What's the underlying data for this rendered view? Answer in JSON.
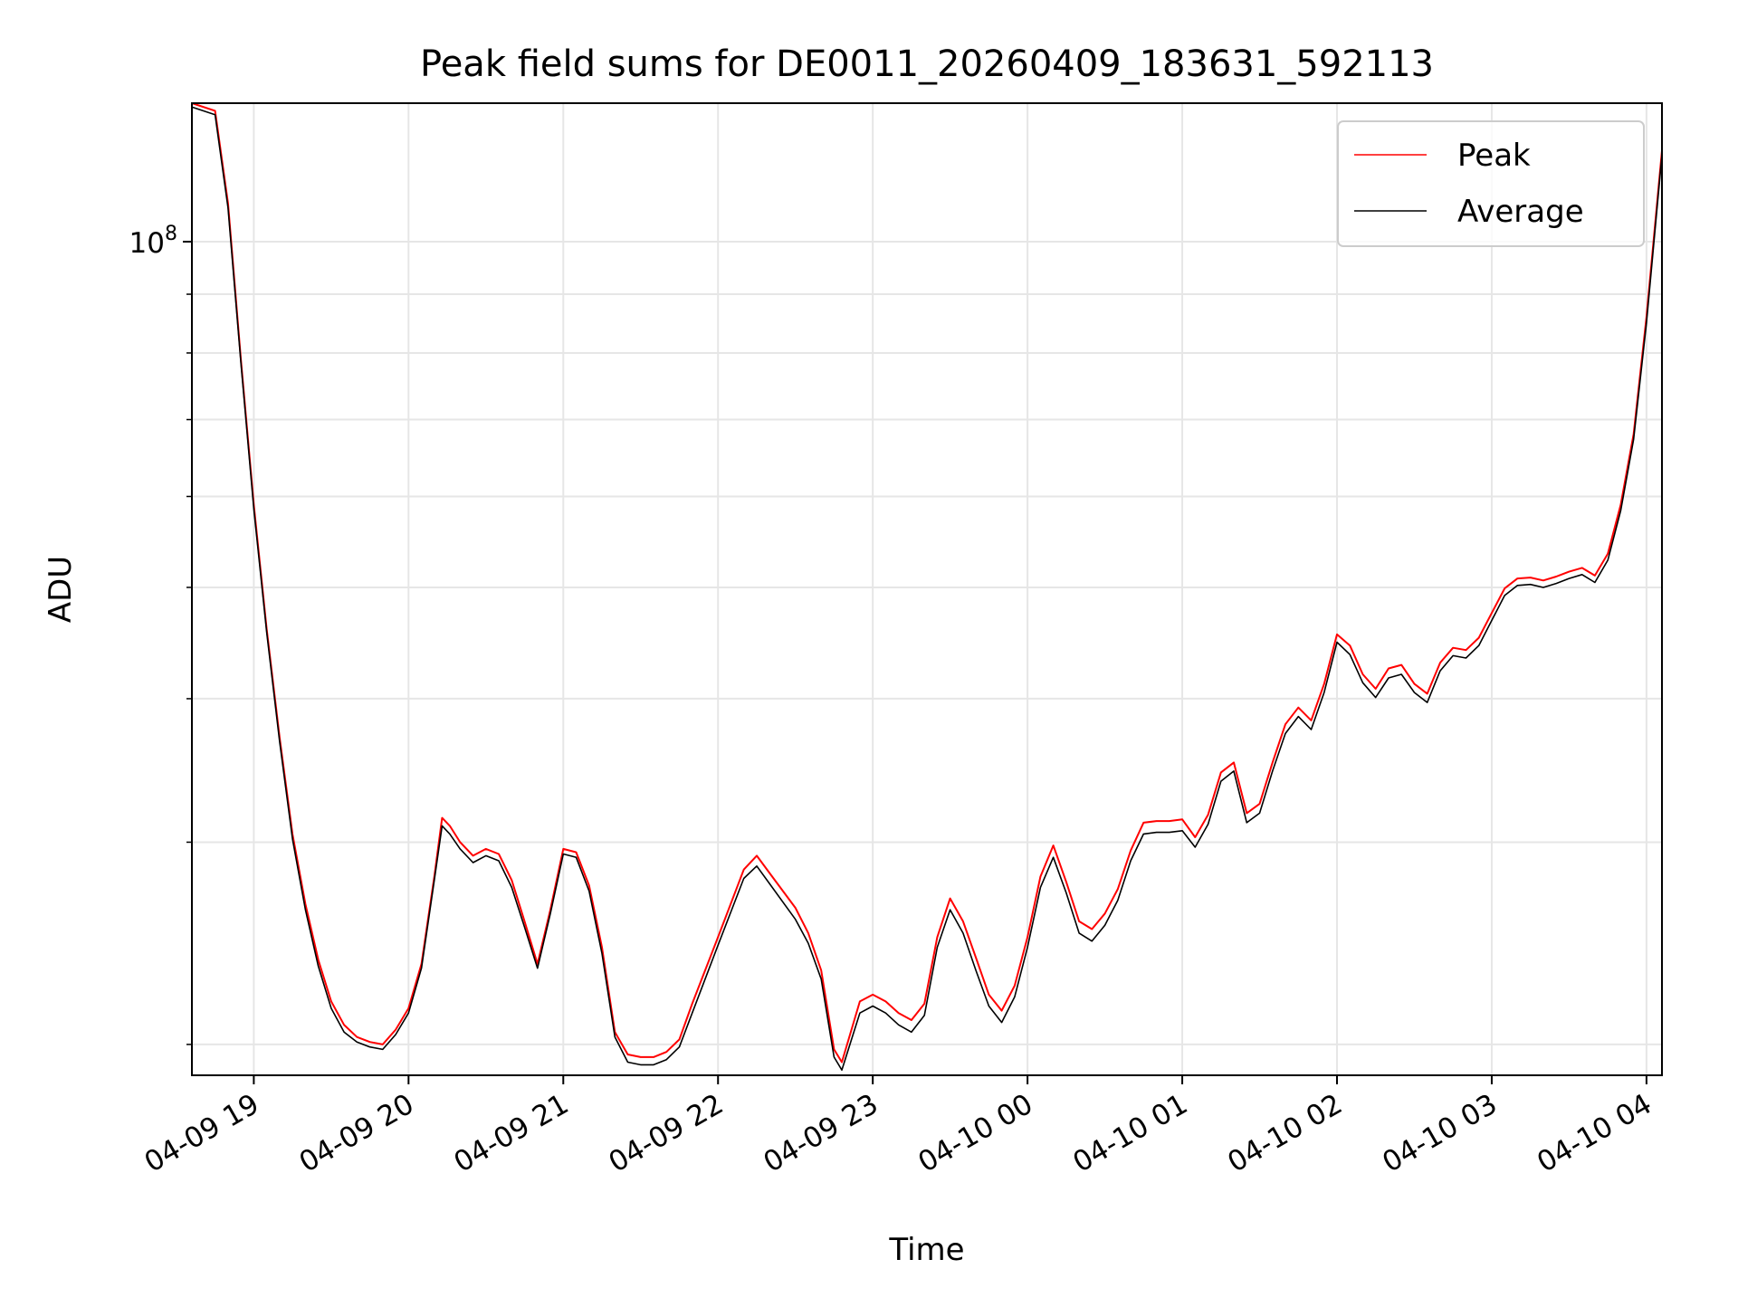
{
  "chart_data": {
    "type": "line",
    "title": "Peak field sums for DE0011_20260409_183631_592113",
    "xlabel": "Time",
    "ylabel": "ADU",
    "x_scale": "time",
    "y_scale": "log",
    "x_range": [
      "2026-04-09 18:36",
      "2026-04-10 04:06"
    ],
    "y_range": [
      18800000,
      132000000
    ],
    "grid": true,
    "legend": {
      "placement": "top-right"
    },
    "x_ticks": [
      {
        "t": "2026-04-09 19:00",
        "label": "04-09 19"
      },
      {
        "t": "2026-04-09 20:00",
        "label": "04-09 20"
      },
      {
        "t": "2026-04-09 21:00",
        "label": "04-09 21"
      },
      {
        "t": "2026-04-09 22:00",
        "label": "04-09 22"
      },
      {
        "t": "2026-04-09 23:00",
        "label": "04-09 23"
      },
      {
        "t": "2026-04-10 00:00",
        "label": "04-10 00"
      },
      {
        "t": "2026-04-10 01:00",
        "label": "04-10 01"
      },
      {
        "t": "2026-04-10 02:00",
        "label": "04-10 02"
      },
      {
        "t": "2026-04-10 03:00",
        "label": "04-10 03"
      },
      {
        "t": "2026-04-10 04:00",
        "label": "04-10 04"
      }
    ],
    "y_major_ticks": [
      {
        "value": 100000000,
        "base": "10",
        "exp": "8"
      }
    ],
    "y_minor_ticks": [
      20000000,
      30000000,
      40000000,
      50000000,
      60000000,
      70000000,
      80000000,
      90000000
    ],
    "series": [
      {
        "name": "Peak",
        "color": "#ff0000",
        "points": [
          [
            "2026-04-09 18:36",
            132000000
          ],
          [
            "2026-04-09 18:45",
            130000000
          ],
          [
            "2026-04-09 18:50",
            108000000
          ],
          [
            "2026-04-09 18:55",
            79000000
          ],
          [
            "2026-04-09 19:00",
            59000000
          ],
          [
            "2026-04-09 19:05",
            46000000
          ],
          [
            "2026-04-09 19:10",
            37000000
          ],
          [
            "2026-04-09 19:15",
            30500000
          ],
          [
            "2026-04-09 19:20",
            26500000
          ],
          [
            "2026-04-09 19:25",
            23700000
          ],
          [
            "2026-04-09 19:30",
            21800000
          ],
          [
            "2026-04-09 19:35",
            20800000
          ],
          [
            "2026-04-09 19:40",
            20300000
          ],
          [
            "2026-04-09 19:45",
            20100000
          ],
          [
            "2026-04-09 19:50",
            20000000
          ],
          [
            "2026-04-09 19:55",
            20600000
          ],
          [
            "2026-04-09 20:00",
            21500000
          ],
          [
            "2026-04-09 20:05",
            23500000
          ],
          [
            "2026-04-09 20:10",
            28000000
          ],
          [
            "2026-04-09 20:13",
            31500000
          ],
          [
            "2026-04-09 20:16",
            31000000
          ],
          [
            "2026-04-09 20:20",
            30000000
          ],
          [
            "2026-04-09 20:25",
            29200000
          ],
          [
            "2026-04-09 20:30",
            29600000
          ],
          [
            "2026-04-09 20:35",
            29300000
          ],
          [
            "2026-04-09 20:40",
            27800000
          ],
          [
            "2026-04-09 20:45",
            25600000
          ],
          [
            "2026-04-09 20:50",
            23500000
          ],
          [
            "2026-04-09 20:55",
            26200000
          ],
          [
            "2026-04-09 21:00",
            29600000
          ],
          [
            "2026-04-09 21:05",
            29400000
          ],
          [
            "2026-04-09 21:10",
            27500000
          ],
          [
            "2026-04-09 21:15",
            24300000
          ],
          [
            "2026-04-09 21:20",
            20500000
          ],
          [
            "2026-04-09 21:25",
            19600000
          ],
          [
            "2026-04-09 21:30",
            19500000
          ],
          [
            "2026-04-09 21:35",
            19500000
          ],
          [
            "2026-04-09 21:40",
            19700000
          ],
          [
            "2026-04-09 21:45",
            20200000
          ],
          [
            "2026-04-09 21:50",
            21700000
          ],
          [
            "2026-04-09 22:00",
            24800000
          ],
          [
            "2026-04-09 22:10",
            28400000
          ],
          [
            "2026-04-09 22:15",
            29200000
          ],
          [
            "2026-04-09 22:20",
            28200000
          ],
          [
            "2026-04-09 22:30",
            26300000
          ],
          [
            "2026-04-09 22:35",
            25000000
          ],
          [
            "2026-04-09 22:40",
            23200000
          ],
          [
            "2026-04-09 22:45",
            19800000
          ],
          [
            "2026-04-09 22:48",
            19300000
          ],
          [
            "2026-04-09 22:55",
            21800000
          ],
          [
            "2026-04-09 23:00",
            22100000
          ],
          [
            "2026-04-09 23:05",
            21800000
          ],
          [
            "2026-04-09 23:10",
            21300000
          ],
          [
            "2026-04-09 23:15",
            21000000
          ],
          [
            "2026-04-09 23:20",
            21700000
          ],
          [
            "2026-04-09 23:25",
            24800000
          ],
          [
            "2026-04-09 23:30",
            26800000
          ],
          [
            "2026-04-09 23:35",
            25600000
          ],
          [
            "2026-04-09 23:40",
            23800000
          ],
          [
            "2026-04-09 23:45",
            22100000
          ],
          [
            "2026-04-09 23:50",
            21400000
          ],
          [
            "2026-04-09 23:55",
            22500000
          ],
          [
            "2026-04-10 00:00",
            24800000
          ],
          [
            "2026-04-10 00:05",
            28000000
          ],
          [
            "2026-04-10 00:10",
            29800000
          ],
          [
            "2026-04-10 00:15",
            27700000
          ],
          [
            "2026-04-10 00:20",
            25600000
          ],
          [
            "2026-04-10 00:25",
            25200000
          ],
          [
            "2026-04-10 00:30",
            26000000
          ],
          [
            "2026-04-10 00:35",
            27300000
          ],
          [
            "2026-04-10 00:40",
            29500000
          ],
          [
            "2026-04-10 00:45",
            31200000
          ],
          [
            "2026-04-10 00:50",
            31300000
          ],
          [
            "2026-04-10 00:55",
            31300000
          ],
          [
            "2026-04-10 01:00",
            31400000
          ],
          [
            "2026-04-10 01:05",
            30300000
          ],
          [
            "2026-04-10 01:10",
            31700000
          ],
          [
            "2026-04-10 01:15",
            34500000
          ],
          [
            "2026-04-10 01:20",
            35200000
          ],
          [
            "2026-04-10 01:25",
            31800000
          ],
          [
            "2026-04-10 01:30",
            32400000
          ],
          [
            "2026-04-10 01:35",
            35200000
          ],
          [
            "2026-04-10 01:40",
            38000000
          ],
          [
            "2026-04-10 01:45",
            39300000
          ],
          [
            "2026-04-10 01:50",
            38300000
          ],
          [
            "2026-04-10 01:55",
            41200000
          ],
          [
            "2026-04-10 02:00",
            45500000
          ],
          [
            "2026-04-10 02:05",
            44500000
          ],
          [
            "2026-04-10 02:10",
            42000000
          ],
          [
            "2026-04-10 02:15",
            40800000
          ],
          [
            "2026-04-10 02:20",
            42500000
          ],
          [
            "2026-04-10 02:25",
            42800000
          ],
          [
            "2026-04-10 02:30",
            41200000
          ],
          [
            "2026-04-10 02:35",
            40400000
          ],
          [
            "2026-04-10 02:40",
            43000000
          ],
          [
            "2026-04-10 02:45",
            44300000
          ],
          [
            "2026-04-10 02:50",
            44100000
          ],
          [
            "2026-04-10 02:55",
            45200000
          ],
          [
            "2026-04-10 03:00",
            47500000
          ],
          [
            "2026-04-10 03:05",
            49900000
          ],
          [
            "2026-04-10 03:10",
            50900000
          ],
          [
            "2026-04-10 03:15",
            51000000
          ],
          [
            "2026-04-10 03:20",
            50700000
          ],
          [
            "2026-04-10 03:25",
            51100000
          ],
          [
            "2026-04-10 03:30",
            51600000
          ],
          [
            "2026-04-10 03:35",
            52000000
          ],
          [
            "2026-04-10 03:40",
            51200000
          ],
          [
            "2026-04-10 03:45",
            53500000
          ],
          [
            "2026-04-10 03:50",
            59000000
          ],
          [
            "2026-04-10 03:55",
            68000000
          ],
          [
            "2026-04-10 04:00",
            86000000
          ],
          [
            "2026-04-10 04:06",
            120000000
          ]
        ]
      },
      {
        "name": "Average",
        "color": "#000000",
        "points": [
          [
            "2026-04-09 18:36",
            131000000
          ],
          [
            "2026-04-09 18:45",
            129000000
          ],
          [
            "2026-04-09 18:50",
            107000000
          ],
          [
            "2026-04-09 18:55",
            78500000
          ],
          [
            "2026-04-09 19:00",
            58500000
          ],
          [
            "2026-04-09 19:05",
            45700000
          ],
          [
            "2026-04-09 19:10",
            36700000
          ],
          [
            "2026-04-09 19:15",
            30200000
          ],
          [
            "2026-04-09 19:20",
            26200000
          ],
          [
            "2026-04-09 19:25",
            23400000
          ],
          [
            "2026-04-09 19:30",
            21500000
          ],
          [
            "2026-04-09 19:35",
            20500000
          ],
          [
            "2026-04-09 19:40",
            20100000
          ],
          [
            "2026-04-09 19:45",
            19900000
          ],
          [
            "2026-04-09 19:50",
            19800000
          ],
          [
            "2026-04-09 19:55",
            20400000
          ],
          [
            "2026-04-09 20:00",
            21300000
          ],
          [
            "2026-04-09 20:05",
            23300000
          ],
          [
            "2026-04-09 20:10",
            27800000
          ],
          [
            "2026-04-09 20:13",
            31000000
          ],
          [
            "2026-04-09 20:16",
            30500000
          ],
          [
            "2026-04-09 20:20",
            29600000
          ],
          [
            "2026-04-09 20:25",
            28800000
          ],
          [
            "2026-04-09 20:30",
            29200000
          ],
          [
            "2026-04-09 20:35",
            28900000
          ],
          [
            "2026-04-09 20:40",
            27400000
          ],
          [
            "2026-04-09 20:45",
            25300000
          ],
          [
            "2026-04-09 20:50",
            23300000
          ],
          [
            "2026-04-09 20:55",
            26000000
          ],
          [
            "2026-04-09 21:00",
            29300000
          ],
          [
            "2026-04-09 21:05",
            29100000
          ],
          [
            "2026-04-09 21:10",
            27200000
          ],
          [
            "2026-04-09 21:15",
            24000000
          ],
          [
            "2026-04-09 21:20",
            20300000
          ],
          [
            "2026-04-09 21:25",
            19300000
          ],
          [
            "2026-04-09 21:30",
            19200000
          ],
          [
            "2026-04-09 21:35",
            19200000
          ],
          [
            "2026-04-09 21:40",
            19400000
          ],
          [
            "2026-04-09 21:45",
            19900000
          ],
          [
            "2026-04-09 21:50",
            21300000
          ],
          [
            "2026-04-09 22:00",
            24400000
          ],
          [
            "2026-04-09 22:10",
            27900000
          ],
          [
            "2026-04-09 22:15",
            28600000
          ],
          [
            "2026-04-09 22:20",
            27600000
          ],
          [
            "2026-04-09 22:30",
            25700000
          ],
          [
            "2026-04-09 22:35",
            24500000
          ],
          [
            "2026-04-09 22:40",
            22800000
          ],
          [
            "2026-04-09 22:45",
            19500000
          ],
          [
            "2026-04-09 22:48",
            19000000
          ],
          [
            "2026-04-09 22:55",
            21300000
          ],
          [
            "2026-04-09 23:00",
            21600000
          ],
          [
            "2026-04-09 23:05",
            21300000
          ],
          [
            "2026-04-09 23:10",
            20800000
          ],
          [
            "2026-04-09 23:15",
            20500000
          ],
          [
            "2026-04-09 23:20",
            21200000
          ],
          [
            "2026-04-09 23:25",
            24300000
          ],
          [
            "2026-04-09 23:30",
            26200000
          ],
          [
            "2026-04-09 23:35",
            25000000
          ],
          [
            "2026-04-09 23:40",
            23200000
          ],
          [
            "2026-04-09 23:45",
            21600000
          ],
          [
            "2026-04-09 23:50",
            20900000
          ],
          [
            "2026-04-09 23:55",
            22000000
          ],
          [
            "2026-04-10 00:00",
            24300000
          ],
          [
            "2026-04-10 00:05",
            27400000
          ],
          [
            "2026-04-10 00:10",
            29100000
          ],
          [
            "2026-04-10 00:15",
            27100000
          ],
          [
            "2026-04-10 00:20",
            25000000
          ],
          [
            "2026-04-10 00:25",
            24600000
          ],
          [
            "2026-04-10 00:30",
            25400000
          ],
          [
            "2026-04-10 00:35",
            26700000
          ],
          [
            "2026-04-10 00:40",
            28900000
          ],
          [
            "2026-04-10 00:45",
            30500000
          ],
          [
            "2026-04-10 00:50",
            30600000
          ],
          [
            "2026-04-10 00:55",
            30600000
          ],
          [
            "2026-04-10 01:00",
            30700000
          ],
          [
            "2026-04-10 01:05",
            29700000
          ],
          [
            "2026-04-10 01:10",
            31100000
          ],
          [
            "2026-04-10 01:15",
            33900000
          ],
          [
            "2026-04-10 01:20",
            34600000
          ],
          [
            "2026-04-10 01:25",
            31200000
          ],
          [
            "2026-04-10 01:30",
            31800000
          ],
          [
            "2026-04-10 01:35",
            34600000
          ],
          [
            "2026-04-10 01:40",
            37300000
          ],
          [
            "2026-04-10 01:45",
            38600000
          ],
          [
            "2026-04-10 01:50",
            37600000
          ],
          [
            "2026-04-10 01:55",
            40500000
          ],
          [
            "2026-04-10 02:00",
            44800000
          ],
          [
            "2026-04-10 02:05",
            43700000
          ],
          [
            "2026-04-10 02:10",
            41300000
          ],
          [
            "2026-04-10 02:15",
            40100000
          ],
          [
            "2026-04-10 02:20",
            41700000
          ],
          [
            "2026-04-10 02:25",
            42000000
          ],
          [
            "2026-04-10 02:30",
            40500000
          ],
          [
            "2026-04-10 02:35",
            39700000
          ],
          [
            "2026-04-10 02:40",
            42300000
          ],
          [
            "2026-04-10 02:45",
            43600000
          ],
          [
            "2026-04-10 02:50",
            43400000
          ],
          [
            "2026-04-10 02:55",
            44500000
          ],
          [
            "2026-04-10 03:00",
            46800000
          ],
          [
            "2026-04-10 03:05",
            49200000
          ],
          [
            "2026-04-10 03:10",
            50200000
          ],
          [
            "2026-04-10 03:15",
            50300000
          ],
          [
            "2026-04-10 03:20",
            50000000
          ],
          [
            "2026-04-10 03:25",
            50400000
          ],
          [
            "2026-04-10 03:30",
            50900000
          ],
          [
            "2026-04-10 03:35",
            51300000
          ],
          [
            "2026-04-10 03:40",
            50500000
          ],
          [
            "2026-04-10 03:45",
            52800000
          ],
          [
            "2026-04-10 03:50",
            58300000
          ],
          [
            "2026-04-10 03:55",
            67300000
          ],
          [
            "2026-04-10 04:00",
            85000000
          ],
          [
            "2026-04-10 04:06",
            119000000
          ]
        ]
      }
    ]
  }
}
